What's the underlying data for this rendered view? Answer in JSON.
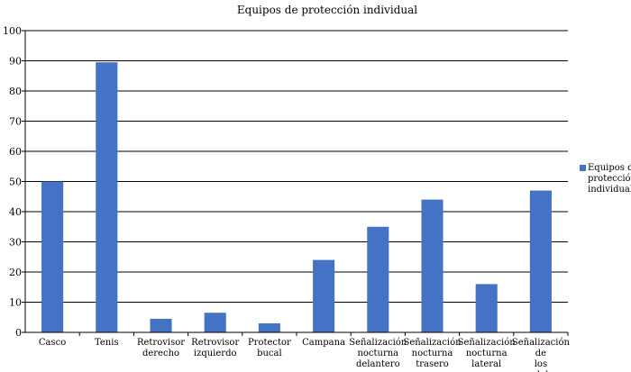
{
  "chart_data": {
    "type": "bar",
    "title": "Equipos de protección individual",
    "categories": [
      "Casco",
      "Tenis",
      "Retrovisor derecho",
      "Retrovisor izquierdo",
      "Protector bucal",
      "Campana",
      "Señalización nocturna delantero",
      "Señalización nocturna trasero",
      "Señalización nocturna lateral",
      "Señalización de los pedales"
    ],
    "series": [
      {
        "name": "Equipos de protección individual",
        "values": [
          50,
          89.5,
          4.5,
          6.5,
          3,
          24,
          35,
          44,
          16,
          47
        ],
        "color": "#4472C4"
      }
    ],
    "ylim": [
      0,
      100
    ],
    "yticks": [
      0,
      10,
      20,
      30,
      40,
      50,
      60,
      70,
      80,
      90,
      100
    ],
    "grid": true,
    "legend": "right"
  }
}
